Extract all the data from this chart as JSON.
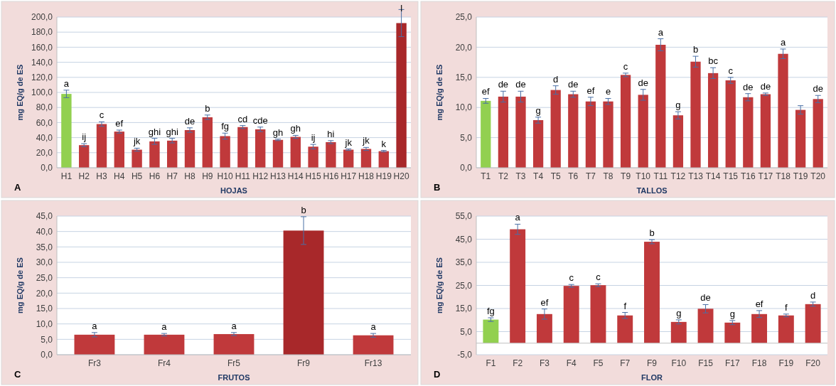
{
  "chart_data": [
    {
      "type": "bar",
      "xlabel": "HOJAS",
      "ylabel": "mg EQ/g de ES",
      "categories": [
        "H1",
        "H2",
        "H3",
        "H4",
        "H5",
        "H6",
        "H7",
        "H8",
        "H9",
        "H10",
        "H11",
        "H12",
        "H13",
        "H14",
        "H15",
        "H16",
        "H17",
        "H18",
        "H19",
        "H20"
      ],
      "values": [
        98,
        30,
        58,
        48,
        24,
        35,
        36,
        50,
        67,
        42,
        54,
        51,
        37,
        41,
        28,
        34,
        24,
        25,
        22,
        192
      ],
      "errors": [
        5,
        2,
        3,
        2,
        2,
        4,
        3,
        3,
        3,
        4,
        2,
        3,
        1,
        2,
        3,
        2,
        1,
        2,
        1,
        18
      ],
      "colors": [
        "#92d050",
        "#c0393b",
        "#c0393b",
        "#c0393b",
        "#c0393b",
        "#c0393b",
        "#c0393b",
        "#c0393b",
        "#c0393b",
        "#c0393b",
        "#c0393b",
        "#c0393b",
        "#c0393b",
        "#c0393b",
        "#c0393b",
        "#c0393b",
        "#c0393b",
        "#c0393b",
        "#c0393b",
        "#a8282a"
      ],
      "ylim": [
        0,
        200
      ],
      "yticks": [
        {
          "value": 0,
          "label": "0,0"
        },
        {
          "value": 20,
          "label": "20,0"
        },
        {
          "value": 40,
          "label": "40,0"
        },
        {
          "value": 60,
          "label": "60,0"
        },
        {
          "value": 80,
          "label": "80,0"
        },
        {
          "value": 100,
          "label": "100,0"
        },
        {
          "value": 120,
          "label": "120,0"
        },
        {
          "value": 140,
          "label": "140,0"
        },
        {
          "value": 160,
          "label": "160,0"
        },
        {
          "value": 180,
          "label": "180,0"
        },
        {
          "value": 200,
          "label": "200,0"
        }
      ],
      "grid": "y",
      "annotations": [
        "A",
        {
          "text": "a",
          "x": "H1",
          "y": 98
        },
        {
          "text": "ij",
          "x": "H2",
          "y": 30
        },
        {
          "text": "c",
          "x": "H3",
          "y": 58
        },
        {
          "text": "ef",
          "x": "H4",
          "y": 48
        },
        {
          "text": "jk",
          "x": "H5",
          "y": 24
        },
        {
          "text": "ghi",
          "x": "H6",
          "y": 35
        },
        {
          "text": "ghi",
          "x": "H7",
          "y": 36
        },
        {
          "text": "de",
          "x": "H8",
          "y": 50
        },
        {
          "text": "b",
          "x": "H9",
          "y": 67
        },
        {
          "text": "fg",
          "x": "H10",
          "y": 42
        },
        {
          "text": "cd",
          "x": "H11",
          "y": 54
        },
        {
          "text": "cde",
          "x": "H12",
          "y": 51
        },
        {
          "text": "gh",
          "x": "H13",
          "y": 37
        },
        {
          "text": "gh",
          "x": "H14",
          "y": 41
        },
        {
          "text": "ij",
          "x": "H15",
          "y": 28
        },
        {
          "text": "hi",
          "x": "H16",
          "y": 34
        },
        {
          "text": "jk",
          "x": "H17",
          "y": 24
        },
        {
          "text": "jk",
          "x": "H18",
          "y": 25
        },
        {
          "text": "k",
          "x": "H19",
          "y": 22
        },
        {
          "text": "l",
          "x": "H20",
          "y": 192
        }
      ]
    },
    {
      "type": "bar",
      "xlabel": "TALLOS",
      "ylabel": "mg EQ/g de ES",
      "categories": [
        "T1",
        "T2",
        "T3",
        "T4",
        "T5",
        "T6",
        "T7",
        "T8",
        "T9",
        "T10",
        "T11",
        "T12",
        "T13",
        "T14",
        "T15",
        "T16",
        "T17",
        "T18",
        "T19",
        "T20"
      ],
      "values": [
        11.1,
        11.8,
        11.8,
        7.9,
        12.9,
        12.2,
        11.0,
        11.0,
        15.4,
        12.1,
        20.4,
        8.7,
        17.6,
        15.7,
        14.5,
        11.7,
        12.2,
        18.9,
        9.6,
        11.4
      ],
      "errors": [
        0.4,
        0.9,
        0.9,
        0.5,
        0.7,
        0.5,
        0.7,
        0.5,
        0.3,
        0.9,
        1.0,
        0.6,
        0.9,
        0.9,
        0.5,
        0.6,
        0.2,
        0.8,
        0.7,
        0.6
      ],
      "colors": [
        "#92d050",
        "#c0393b",
        "#c0393b",
        "#c0393b",
        "#c0393b",
        "#c0393b",
        "#c0393b",
        "#c0393b",
        "#c0393b",
        "#c0393b",
        "#c0393b",
        "#c0393b",
        "#c0393b",
        "#c0393b",
        "#c0393b",
        "#c0393b",
        "#c0393b",
        "#c0393b",
        "#c0393b",
        "#c0393b"
      ],
      "ylim": [
        0,
        25
      ],
      "yticks": [
        {
          "value": 0,
          "label": "0,0"
        },
        {
          "value": 5,
          "label": "5,0"
        },
        {
          "value": 10,
          "label": "10,0"
        },
        {
          "value": 15,
          "label": "15,0"
        },
        {
          "value": 20,
          "label": "20,0"
        },
        {
          "value": 25,
          "label": "25,0"
        }
      ],
      "grid": "y",
      "annotations": [
        "B",
        {
          "text": "ef",
          "x": "T1",
          "y": 11.1
        },
        {
          "text": "de",
          "x": "T2",
          "y": 11.8
        },
        {
          "text": "de",
          "x": "T3",
          "y": 11.8
        },
        {
          "text": "g",
          "x": "T4",
          "y": 7.9
        },
        {
          "text": "d",
          "x": "T5",
          "y": 12.9
        },
        {
          "text": "de",
          "x": "T6",
          "y": 12.2
        },
        {
          "text": "ef",
          "x": "T7",
          "y": 11.0
        },
        {
          "text": "e",
          "x": "T8",
          "y": 11.0
        },
        {
          "text": "c",
          "x": "T9",
          "y": 15.4
        },
        {
          "text": "de",
          "x": "T10",
          "y": 12.1
        },
        {
          "text": "a",
          "x": "T11",
          "y": 20.4
        },
        {
          "text": "g",
          "x": "T12",
          "y": 8.7
        },
        {
          "text": "b",
          "x": "T13",
          "y": 17.6
        },
        {
          "text": "bc",
          "x": "T14",
          "y": 15.7
        },
        {
          "text": "c",
          "x": "T15",
          "y": 14.5
        },
        {
          "text": "de",
          "x": "T16",
          "y": 11.7
        },
        {
          "text": "de",
          "x": "T17",
          "y": 12.2
        },
        {
          "text": "a",
          "x": "T18",
          "y": 18.9
        },
        {
          "text": "de",
          "x": "T20",
          "y": 11.4
        }
      ]
    },
    {
      "type": "bar",
      "xlabel": "FRUTOS",
      "ylabel": "mg EQ/g de ES",
      "categories": [
        "Fr3",
        "Fr4",
        "Fr5",
        "Fr9",
        "Fr13"
      ],
      "values": [
        6.5,
        6.5,
        6.7,
        40.3,
        6.3
      ],
      "errors": [
        0.7,
        0.4,
        0.5,
        4.5,
        0.6
      ],
      "colors": [
        "#c0393b",
        "#c0393b",
        "#c0393b",
        "#a8282a",
        "#c0393b"
      ],
      "ylim": [
        0,
        45
      ],
      "yticks": [
        {
          "value": 0,
          "label": "0,0"
        },
        {
          "value": 5,
          "label": "5,0"
        },
        {
          "value": 10,
          "label": "10,0"
        },
        {
          "value": 15,
          "label": "15,0"
        },
        {
          "value": 20,
          "label": "20,0"
        },
        {
          "value": 25,
          "label": "25,0"
        },
        {
          "value": 30,
          "label": "30,0"
        },
        {
          "value": 35,
          "label": "35,0"
        },
        {
          "value": 40,
          "label": "40,0"
        },
        {
          "value": 45,
          "label": "45,0"
        }
      ],
      "grid": "y",
      "annotations": [
        "C",
        {
          "text": "a",
          "x": "Fr3",
          "y": 6.5
        },
        {
          "text": "a",
          "x": "Fr4",
          "y": 6.5
        },
        {
          "text": "a",
          "x": "Fr5",
          "y": 6.7
        },
        {
          "text": "b",
          "x": "Fr9",
          "y": 40.3
        },
        {
          "text": "a",
          "x": "Fr13",
          "y": 6.3
        }
      ]
    },
    {
      "type": "bar",
      "xlabel": "FLOR",
      "ylabel": "mg EQ/g de ES",
      "categories": [
        "F1",
        "F2",
        "F3",
        "F4",
        "F5",
        "F7",
        "F9",
        "F10",
        "F15",
        "F17",
        "F18",
        "F19",
        "F20"
      ],
      "values": [
        10.2,
        49.3,
        12.6,
        24.8,
        25.1,
        12.0,
        43.9,
        9.2,
        14.9,
        8.9,
        12.6,
        12.0,
        16.9
      ],
      "errors": [
        0.8,
        2.2,
        2.2,
        0.6,
        0.6,
        1.3,
        0.9,
        0.9,
        1.8,
        0.9,
        1.5,
        0.6,
        0.9
      ],
      "colors": [
        "#92d050",
        "#c0393b",
        "#c0393b",
        "#c0393b",
        "#c0393b",
        "#c0393b",
        "#c0393b",
        "#c0393b",
        "#c0393b",
        "#c0393b",
        "#c0393b",
        "#c0393b",
        "#c0393b"
      ],
      "ylim": [
        -5,
        55
      ],
      "yticks": [
        {
          "value": -5,
          "label": "-5,0"
        },
        {
          "value": 5,
          "label": "5,0"
        },
        {
          "value": 15,
          "label": "15,0"
        },
        {
          "value": 25,
          "label": "25,0"
        },
        {
          "value": 35,
          "label": "35,0"
        },
        {
          "value": 45,
          "label": "45,0"
        },
        {
          "value": 55,
          "label": "55,0"
        }
      ],
      "grid": "y",
      "annotations": [
        "D",
        {
          "text": "fg",
          "x": "F1",
          "y": 10.2
        },
        {
          "text": "a",
          "x": "F2",
          "y": 49.3
        },
        {
          "text": "ef",
          "x": "F3",
          "y": 12.6
        },
        {
          "text": "c",
          "x": "F4",
          "y": 24.8
        },
        {
          "text": "c",
          "x": "F5",
          "y": 25.1
        },
        {
          "text": "f",
          "x": "F7",
          "y": 12.0
        },
        {
          "text": "b",
          "x": "F9",
          "y": 43.9
        },
        {
          "text": "g",
          "x": "F10",
          "y": 9.2
        },
        {
          "text": "de",
          "x": "F15",
          "y": 14.9
        },
        {
          "text": "g",
          "x": "F17",
          "y": 8.9
        },
        {
          "text": "ef",
          "x": "F18",
          "y": 12.6
        },
        {
          "text": "f",
          "x": "F19",
          "y": 12.0
        },
        {
          "text": "d",
          "x": "F20",
          "y": 16.9
        }
      ]
    }
  ]
}
